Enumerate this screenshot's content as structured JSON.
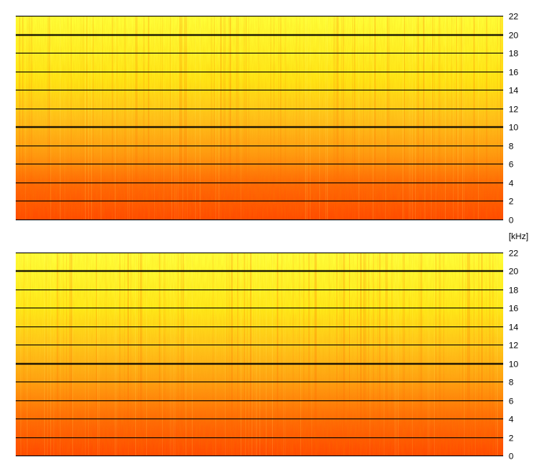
{
  "chart_data": [
    {
      "type": "heatmap",
      "channel": "top",
      "ylim": [
        0,
        22
      ],
      "yticks": [
        "0",
        "2",
        "4",
        "6",
        "8",
        "10",
        "12",
        "14",
        "16",
        "18",
        "20",
        "22"
      ],
      "grid": true,
      "emphasized_lines": [
        10,
        20
      ],
      "colormap": [
        "#ff4a00",
        "#ff8a0a",
        "#ffc81a",
        "#fff200",
        "#ffff40"
      ]
    },
    {
      "type": "heatmap",
      "channel": "bottom",
      "ylim": [
        0,
        22
      ],
      "yticks": [
        "0",
        "2",
        "4",
        "6",
        "8",
        "10",
        "12",
        "14",
        "16",
        "18",
        "20",
        "22"
      ],
      "grid": true,
      "emphasized_lines": [
        10,
        20
      ],
      "colormap": [
        "#ff4a00",
        "#ff8a0a",
        "#ffc81a",
        "#fff200",
        "#ffff40"
      ]
    }
  ],
  "unit_label": "[kHz]"
}
